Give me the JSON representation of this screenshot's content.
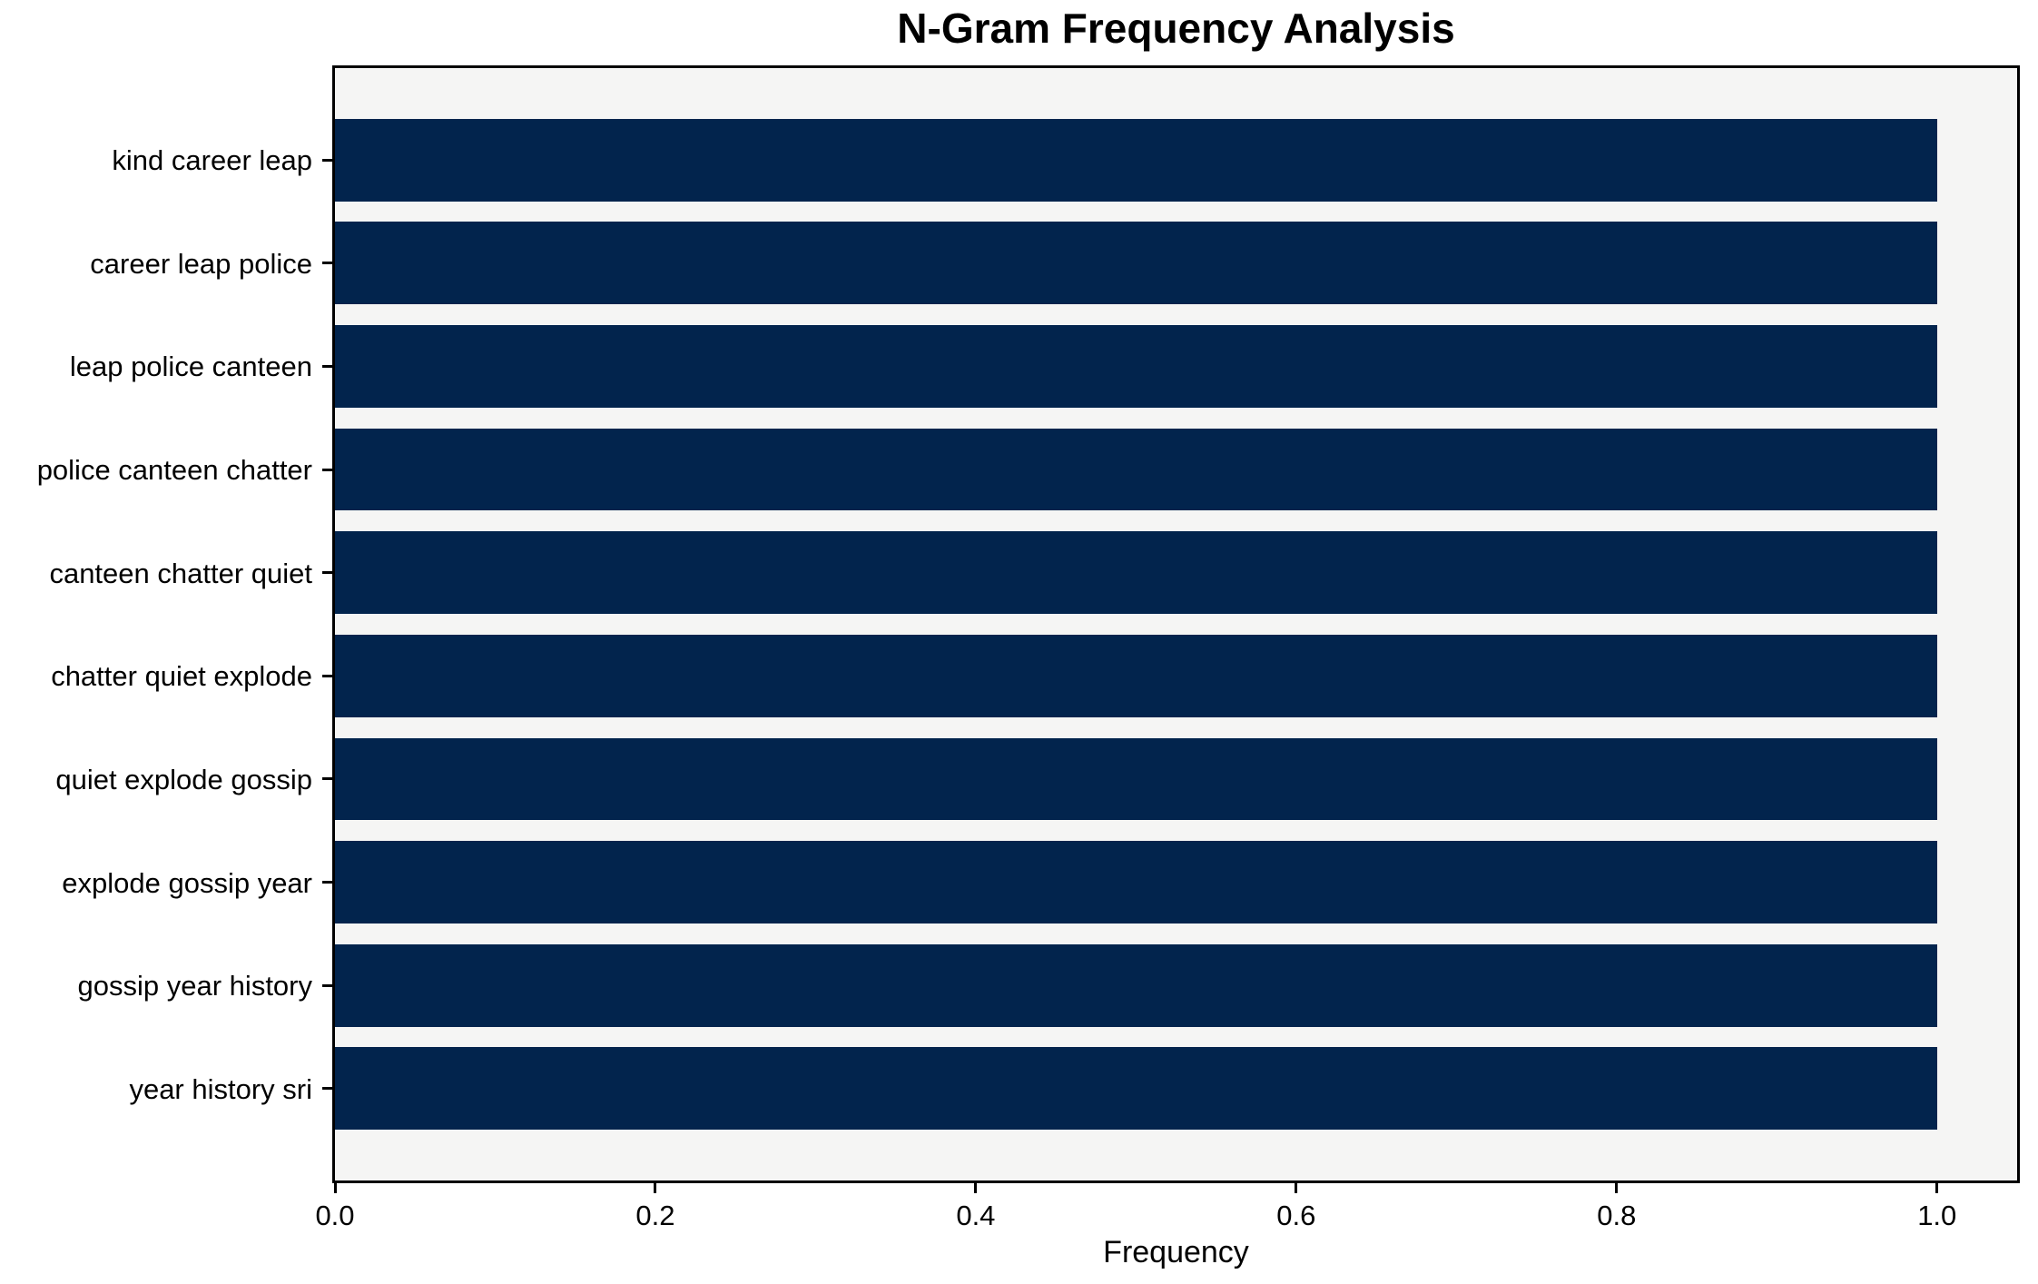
{
  "title": "N-Gram Frequency Analysis",
  "colors": {
    "bar": "#02244d",
    "plot_background": "#f5f5f4",
    "spine": "#000000",
    "text": "#000000",
    "figure_background": "#ffffff"
  },
  "chart_data": {
    "type": "bar",
    "orientation": "horizontal",
    "title": "N-Gram Frequency Analysis",
    "xlabel": "Frequency",
    "ylabel": "",
    "categories": [
      "kind career leap",
      "career leap police",
      "leap police canteen",
      "police canteen chatter",
      "canteen chatter quiet",
      "chatter quiet explode",
      "quiet explode gossip",
      "explode gossip year",
      "gossip year history",
      "year history sri"
    ],
    "values": [
      1.0,
      1.0,
      1.0,
      1.0,
      1.0,
      1.0,
      1.0,
      1.0,
      1.0,
      1.0
    ],
    "xlim": [
      0.0,
      1.05
    ],
    "xticks": [
      0.0,
      0.2,
      0.4,
      0.6,
      0.8,
      1.0
    ],
    "xtick_labels": [
      "0.0",
      "0.2",
      "0.4",
      "0.6",
      "0.8",
      "1.0"
    ],
    "grid": false,
    "legend": null,
    "bar_height_fraction": 0.8
  }
}
